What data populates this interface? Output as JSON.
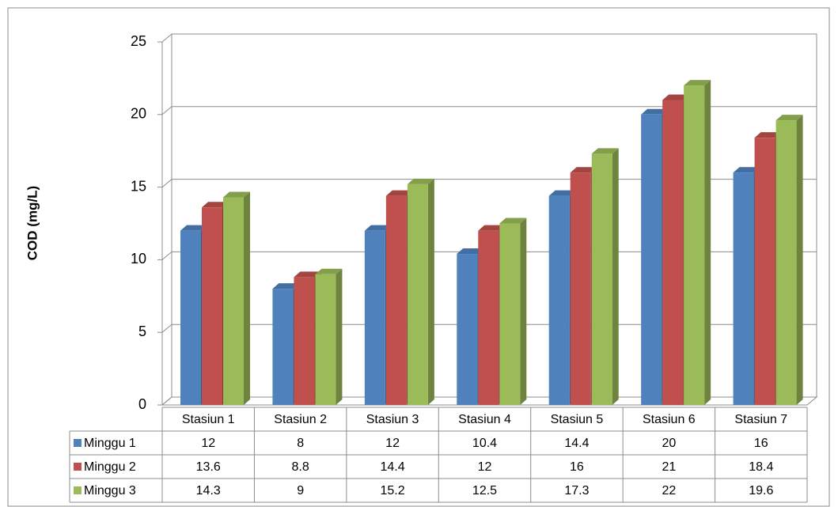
{
  "chart_data": {
    "type": "bar3d",
    "y_axis_label": "COD (mg/L)",
    "categories": [
      "Stasiun 1",
      "Stasiun 2",
      "Stasiun 3",
      "Stasiun 4",
      "Stasiun 5",
      "Stasiun 6",
      "Stasiun 7"
    ],
    "series": [
      {
        "name": "Minggu 1",
        "color": "#4f81bd",
        "values": [
          12,
          8,
          12,
          10.4,
          14.4,
          20,
          16
        ]
      },
      {
        "name": "Minggu 2",
        "color": "#c0504d",
        "values": [
          13.6,
          8.8,
          14.4,
          12,
          16,
          21,
          18.4
        ]
      },
      {
        "name": "Minggu 3",
        "color": "#9bbb59",
        "values": [
          14.3,
          9,
          15.2,
          12.5,
          17.3,
          22,
          19.6
        ]
      }
    ],
    "ylim": [
      0,
      25
    ],
    "yticks": [
      0,
      5,
      10,
      15,
      20,
      25
    ],
    "grid": true
  }
}
